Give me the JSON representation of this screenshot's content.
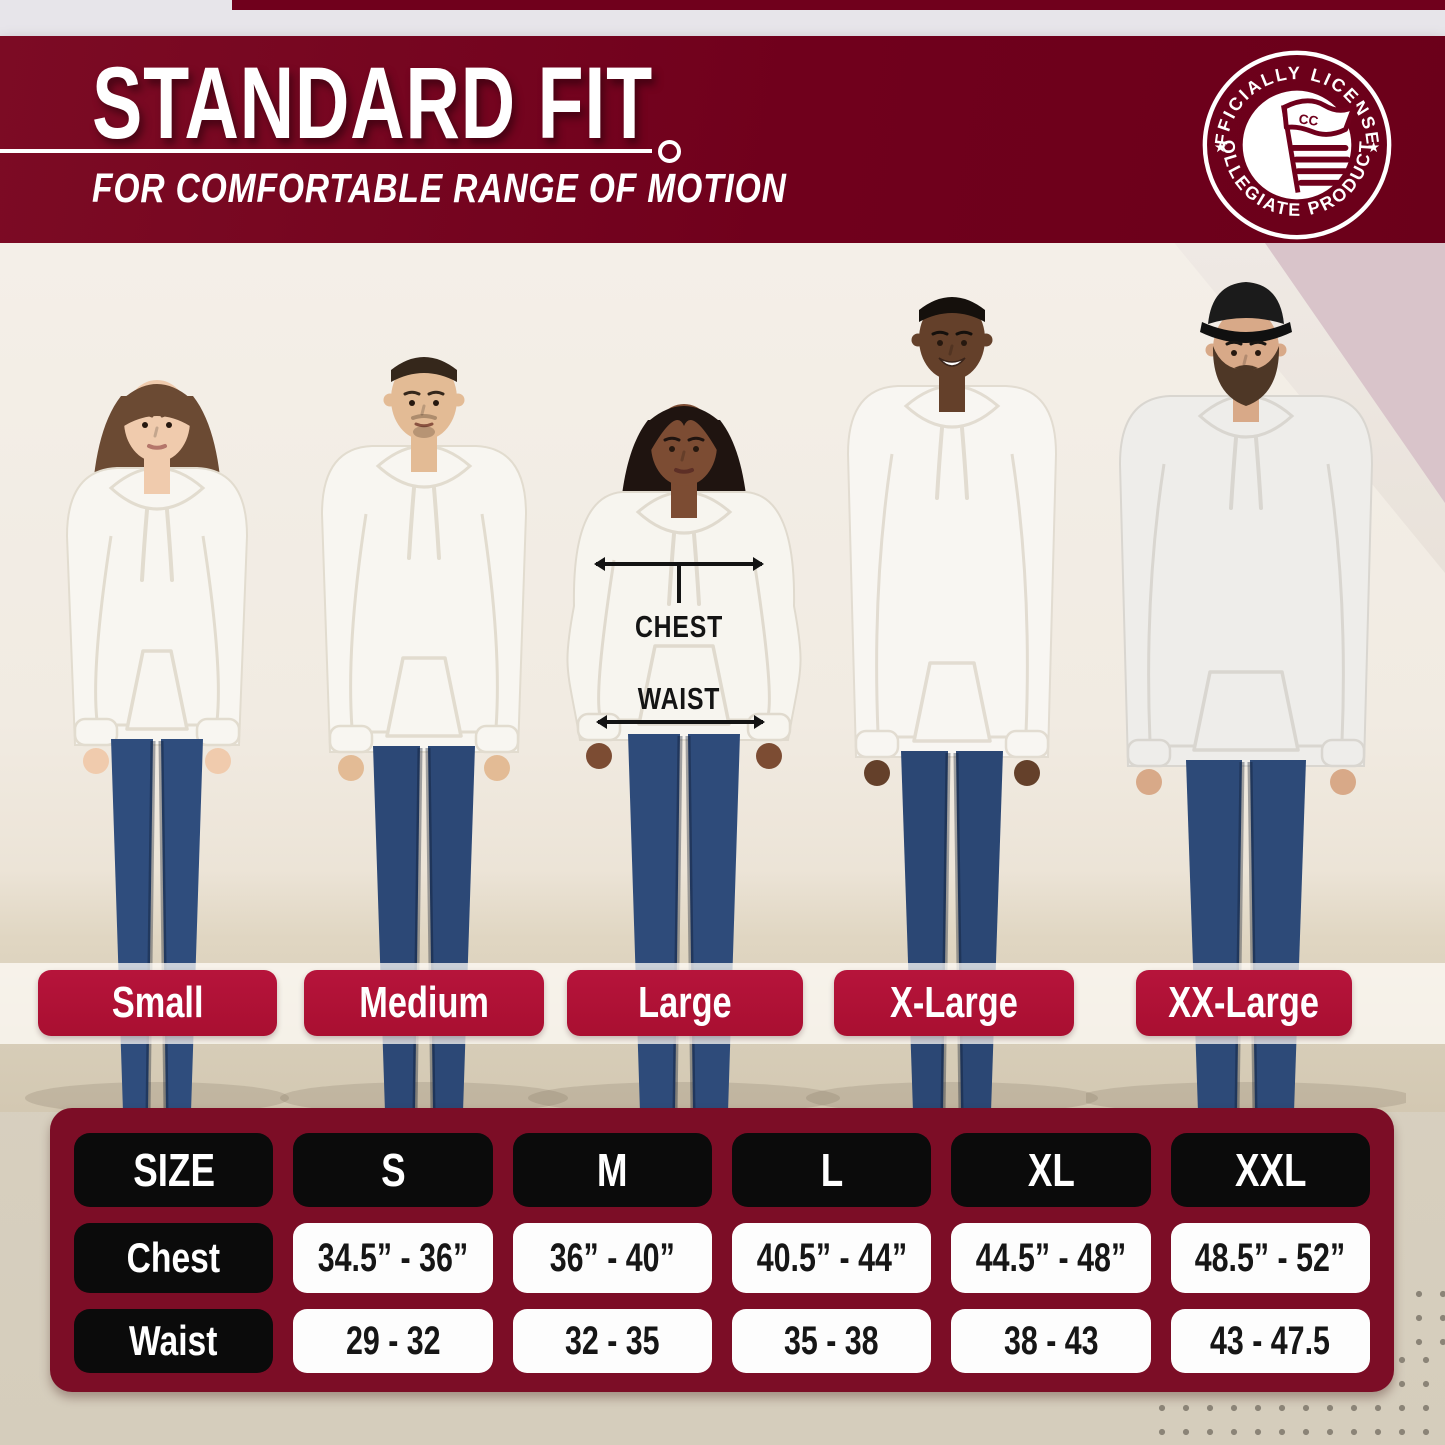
{
  "header": {
    "title": "STANDARD FIT",
    "subtitle": "FOR COMFORTABLE RANGE OF MOTION",
    "badge": {
      "top_text": "OFFICIALLY LICENSED",
      "bottom_text": "COLLEGIATE PRODUCTS",
      "center_monogram": "CC",
      "star": "★"
    }
  },
  "diagram": {
    "chest_label": "CHEST",
    "waist_label": "WAIST"
  },
  "size_ribbons": [
    "Small",
    "Medium",
    "Large",
    "X-Large",
    "XX-Large"
  ],
  "size_table": {
    "columns": [
      "SIZE",
      "S",
      "M",
      "L",
      "XL",
      "XXL"
    ],
    "rows": [
      {
        "label": "Chest",
        "values": [
          "34.5” - 36”",
          "36” - 40”",
          "40.5” - 44”",
          "44.5” - 48”",
          "48.5” - 52”"
        ]
      },
      {
        "label": "Waist",
        "values": [
          "29 - 32",
          "32 - 35",
          "35 - 38",
          "38 - 43",
          "43 - 47.5"
        ]
      }
    ]
  },
  "colors": {
    "banner_maroon": "#70001c",
    "ribbon_crimson": "#b1143a",
    "panel_maroon": "#7c0d26",
    "pill_black": "#0b0b0b",
    "pill_white": "#fdfdfd",
    "background_beige": "#d8d0c0"
  }
}
